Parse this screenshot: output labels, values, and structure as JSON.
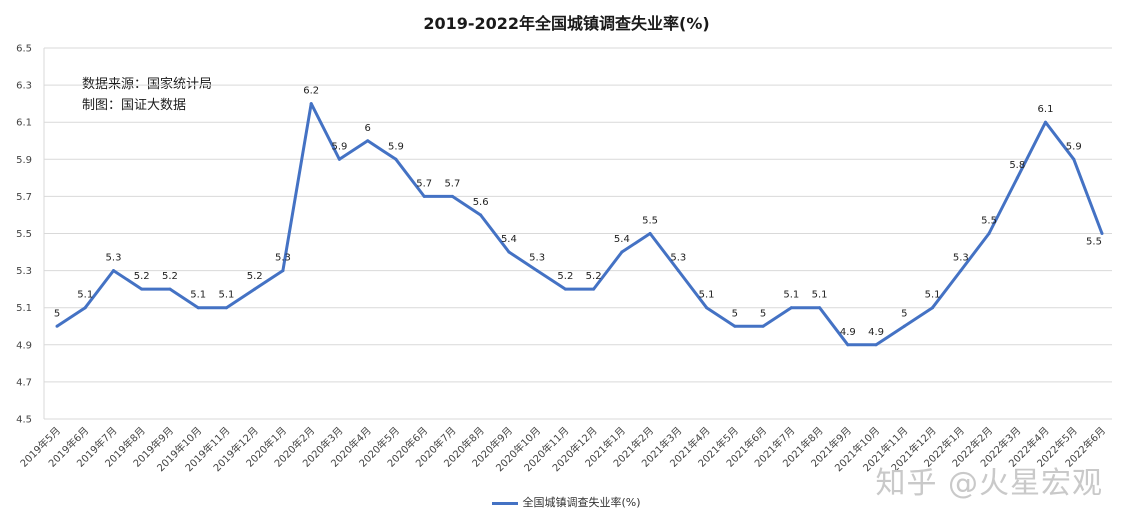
{
  "chart_data": {
    "type": "line",
    "title": "2019-2022年全国城镇调查失业率(%)",
    "source_note": "数据来源：国家统计局",
    "maker_note": "制图：国证大数据",
    "watermark": "知乎 @火星宏观",
    "xlabel": "",
    "ylabel": "",
    "ylim": [
      4.5,
      6.5
    ],
    "yticks": [
      "4.5",
      "4.7",
      "4.9",
      "5.1",
      "5.3",
      "5.5",
      "5.7",
      "5.9",
      "6.1",
      "6.3",
      "6.5"
    ],
    "grid": true,
    "legend_position": "bottom",
    "categories": [
      "2019年5月",
      "2019年6月",
      "2019年7月",
      "2019年8月",
      "2019年9月",
      "2019年10月",
      "2019年11月",
      "2019年12月",
      "2020年1月",
      "2020年2月",
      "2020年3月",
      "2020年4月",
      "2020年5月",
      "2020年6月",
      "2020年7月",
      "2020年8月",
      "2020年9月",
      "2020年10月",
      "2020年11月",
      "2020年12月",
      "2021年1月",
      "2021年2月",
      "2021年3月",
      "2021年4月",
      "2021年5月",
      "2021年6月",
      "2021年7月",
      "2021年8月",
      "2021年9月",
      "2021年10月",
      "2021年11月",
      "2021年12月",
      "2022年1月",
      "2022年2月",
      "2022年3月",
      "2022年4月",
      "2022年5月",
      "2022年6月"
    ],
    "series": [
      {
        "name": "全国城镇调查失业率(%)",
        "color": "#4472c4",
        "values": [
          5,
          5.1,
          5.3,
          5.2,
          5.2,
          5.1,
          5.1,
          5.2,
          5.3,
          6.2,
          5.9,
          6,
          5.9,
          5.7,
          5.7,
          5.6,
          5.4,
          5.3,
          5.2,
          5.2,
          5.4,
          5.5,
          5.3,
          5.1,
          5,
          5,
          5.1,
          5.1,
          4.9,
          4.9,
          5,
          5.1,
          5.3,
          5.5,
          5.8,
          6.1,
          5.9,
          5.5
        ]
      }
    ]
  }
}
